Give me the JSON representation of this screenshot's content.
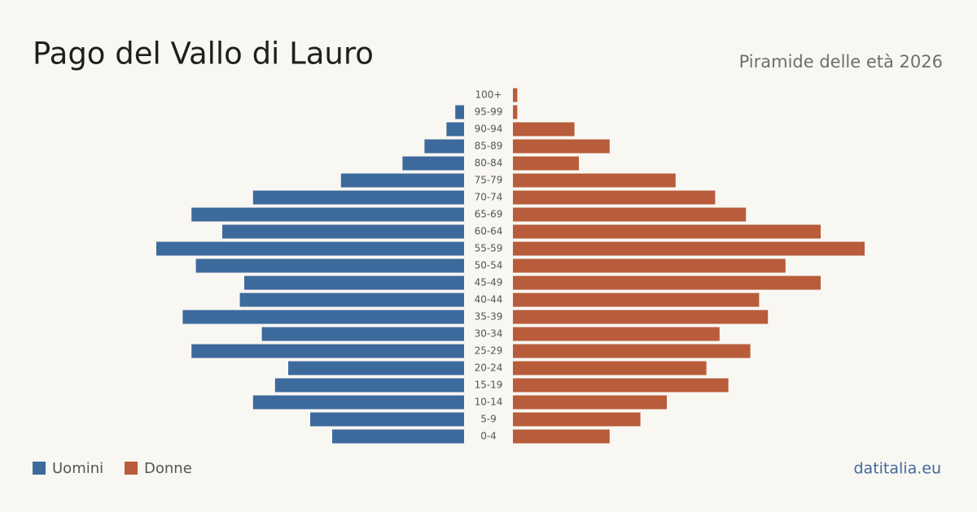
{
  "chart_data": {
    "type": "pyramid",
    "title": "Pago del Vallo di Lauro",
    "subtitle": "Piramide delle età 2026",
    "source": "datitalia.eu",
    "categories": [
      "100+",
      "95-99",
      "90-94",
      "85-89",
      "80-84",
      "75-79",
      "70-74",
      "65-69",
      "60-64",
      "55-59",
      "50-54",
      "45-49",
      "40-44",
      "35-39",
      "30-34",
      "25-29",
      "20-24",
      "15-19",
      "10-14",
      "5-9",
      "0-4"
    ],
    "series": [
      {
        "name": "Uomini",
        "color": "#3d6a9c",
        "values": [
          0,
          2,
          4,
          9,
          14,
          28,
          48,
          62,
          55,
          70,
          61,
          50,
          51,
          64,
          46,
          62,
          40,
          43,
          48,
          35,
          30
        ]
      },
      {
        "name": "Donne",
        "color": "#b85c3b",
        "values": [
          1,
          1,
          14,
          22,
          15,
          37,
          46,
          53,
          70,
          80,
          62,
          70,
          56,
          58,
          47,
          54,
          44,
          49,
          35,
          29,
          22
        ]
      }
    ]
  }
}
